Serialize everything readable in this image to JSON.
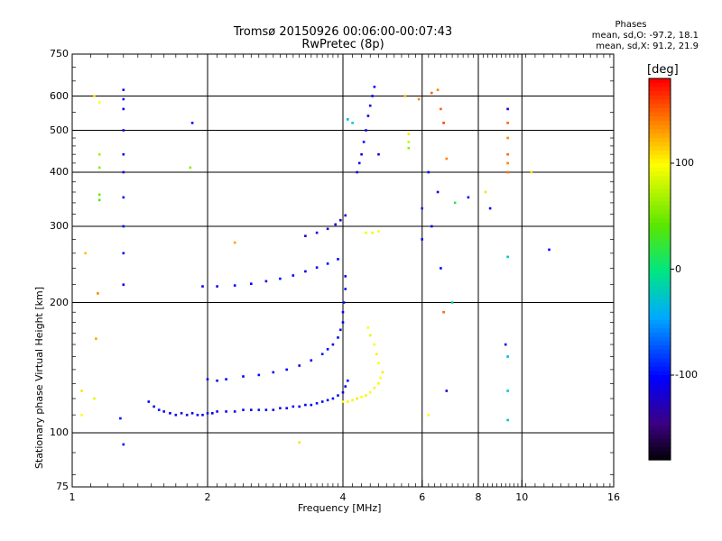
{
  "header": {
    "title": "Tromsø 20150926 00:06:00-00:07:43",
    "subtitle": "RwPretec (8p)"
  },
  "phases_box": {
    "heading": "Phases",
    "line_o": "mean, sd,O: -97.2, 18.1",
    "line_x": "mean, sd,X:  91.2, 21.9"
  },
  "colorbar": {
    "label": "[deg]",
    "ticks": [
      "100",
      "0",
      "-100"
    ],
    "tick_values": [
      100,
      0,
      -100
    ],
    "range": [
      -180,
      180
    ]
  },
  "chart_data": {
    "type": "scatter",
    "title": "Tromsø 20150926 00:06:00-00:07:43",
    "subtitle": "RwPretec (8p)",
    "xlabel": "Frequency [MHz]",
    "ylabel": "Stationary phase Virtual Height [km]",
    "x_scale": "log",
    "y_scale": "log",
    "xlim": [
      1,
      16
    ],
    "ylim": [
      75,
      750
    ],
    "x_ticks": [
      1,
      2,
      4,
      6,
      8,
      10,
      16
    ],
    "x_tick_labels": [
      "1",
      "2",
      "4",
      "6",
      "8",
      "10",
      "16"
    ],
    "y_ticks": [
      75,
      100,
      200,
      300,
      400,
      500,
      600,
      750
    ],
    "y_tick_labels": [
      "75",
      "100",
      "200",
      "300",
      "400",
      "500",
      "600",
      "750"
    ],
    "x_gridlines": [
      2,
      4,
      6,
      8,
      10
    ],
    "y_gridlines": [
      100,
      200,
      300,
      400,
      500,
      600
    ],
    "color_axis": "phase [deg]",
    "series": [
      {
        "trace": "O-mode lower band",
        "points": [
          [
            1.48,
            118,
            -105
          ],
          [
            1.52,
            115,
            -110
          ],
          [
            1.56,
            113,
            -95
          ],
          [
            1.6,
            112,
            -108
          ],
          [
            1.65,
            111,
            -102
          ],
          [
            1.7,
            110,
            -112
          ],
          [
            1.75,
            111,
            -98
          ],
          [
            1.8,
            110,
            -105
          ],
          [
            1.85,
            111,
            -110
          ],
          [
            1.9,
            110,
            -100
          ],
          [
            1.95,
            110,
            -108
          ],
          [
            2.0,
            111,
            -95
          ],
          [
            2.05,
            111,
            -105
          ],
          [
            2.1,
            112,
            -110
          ],
          [
            2.2,
            112,
            -100
          ],
          [
            2.3,
            112,
            -106
          ],
          [
            2.4,
            113,
            -102
          ],
          [
            2.5,
            113,
            -108
          ],
          [
            2.6,
            113,
            -95
          ],
          [
            2.7,
            113,
            -104
          ],
          [
            2.8,
            113,
            -110
          ],
          [
            2.9,
            114,
            -100
          ],
          [
            3.0,
            114,
            -106
          ],
          [
            3.1,
            115,
            -98
          ],
          [
            3.2,
            115,
            -104
          ],
          [
            3.3,
            116,
            -110
          ],
          [
            3.4,
            116,
            -100
          ],
          [
            3.5,
            117,
            -96
          ],
          [
            3.6,
            118,
            -104
          ],
          [
            3.7,
            119,
            -108
          ],
          [
            3.8,
            120,
            -100
          ],
          [
            3.9,
            122,
            -95
          ],
          [
            4.0,
            124,
            -104
          ],
          [
            4.05,
            128,
            -110
          ],
          [
            4.1,
            132,
            -100
          ]
        ]
      },
      {
        "trace": "O-mode upper branch",
        "points": [
          [
            2.0,
            133,
            -105
          ],
          [
            2.1,
            132,
            -110
          ],
          [
            2.2,
            133,
            -100
          ],
          [
            2.4,
            135,
            -104
          ],
          [
            2.6,
            136,
            -98
          ],
          [
            2.8,
            138,
            -106
          ],
          [
            3.0,
            140,
            -100
          ],
          [
            3.2,
            143,
            -108
          ],
          [
            3.4,
            147,
            -102
          ],
          [
            3.6,
            152,
            -96
          ],
          [
            3.7,
            156,
            -104
          ],
          [
            3.8,
            160,
            -110
          ],
          [
            3.9,
            166,
            -100
          ],
          [
            3.95,
            173,
            -95
          ],
          [
            4.0,
            180,
            -104
          ],
          [
            4.0,
            190,
            -108
          ],
          [
            4.02,
            200,
            -100
          ],
          [
            4.05,
            215,
            -96
          ],
          [
            4.05,
            230,
            -104
          ]
        ]
      },
      {
        "trace": "F2 oblique trace",
        "points": [
          [
            1.95,
            218,
            -105
          ],
          [
            2.1,
            218,
            -110
          ],
          [
            2.3,
            219,
            -100
          ],
          [
            2.5,
            221,
            -104
          ],
          [
            2.7,
            224,
            -108
          ],
          [
            2.9,
            227,
            -98
          ],
          [
            3.1,
            231,
            -104
          ],
          [
            3.3,
            236,
            -110
          ],
          [
            3.5,
            241,
            -100
          ],
          [
            3.7,
            246,
            -96
          ],
          [
            3.9,
            252,
            -104
          ]
        ]
      },
      {
        "trace": "high F2 echoes",
        "points": [
          [
            3.3,
            285,
            -120
          ],
          [
            3.5,
            290,
            -115
          ],
          [
            3.7,
            296,
            -118
          ],
          [
            3.85,
            303,
            -112
          ],
          [
            3.95,
            310,
            -120
          ],
          [
            4.05,
            318,
            -115
          ]
        ]
      },
      {
        "trace": "F2 vertical spread",
        "points": [
          [
            4.3,
            400,
            -105
          ],
          [
            4.35,
            420,
            -100
          ],
          [
            4.4,
            440,
            -108
          ],
          [
            4.45,
            470,
            -95
          ],
          [
            4.5,
            500,
            -104
          ],
          [
            4.55,
            540,
            -100
          ],
          [
            4.6,
            570,
            -110
          ],
          [
            4.65,
            600,
            -98
          ],
          [
            4.7,
            630,
            -104
          ],
          [
            4.2,
            520,
            -20
          ],
          [
            4.1,
            530,
            -40
          ],
          [
            4.8,
            440,
            -110
          ]
        ]
      },
      {
        "trace": "X-mode trace",
        "points": [
          [
            4.0,
            118,
            100
          ],
          [
            4.1,
            118,
            105
          ],
          [
            4.2,
            119,
            95
          ],
          [
            4.3,
            120,
            110
          ],
          [
            4.4,
            121,
            100
          ],
          [
            4.5,
            122,
            105
          ],
          [
            4.6,
            124,
            98
          ],
          [
            4.7,
            127,
            104
          ],
          [
            4.8,
            130,
            96
          ],
          [
            4.85,
            134,
            100
          ],
          [
            4.9,
            138,
            108
          ],
          [
            4.8,
            145,
            100
          ],
          [
            4.75,
            152,
            106
          ],
          [
            4.7,
            160,
            98
          ],
          [
            4.6,
            168,
            90
          ],
          [
            4.55,
            175,
            100
          ],
          [
            4.65,
            290,
            105
          ],
          [
            4.8,
            292,
            100
          ],
          [
            4.5,
            290,
            95
          ]
        ]
      },
      {
        "trace": "scattered echoes",
        "points": [
          [
            1.05,
            110,
            100
          ],
          [
            1.05,
            125,
            110
          ],
          [
            1.07,
            260,
            120
          ],
          [
            1.12,
            600,
            110
          ],
          [
            1.15,
            580,
            100
          ],
          [
            1.15,
            440,
            70
          ],
          [
            1.15,
            410,
            60
          ],
          [
            1.15,
            355,
            50
          ],
          [
            1.15,
            345,
            40
          ],
          [
            1.14,
            210,
            140
          ],
          [
            1.13,
            165,
            130
          ],
          [
            1.12,
            120,
            90
          ],
          [
            1.3,
            620,
            -100
          ],
          [
            1.3,
            590,
            -95
          ],
          [
            1.3,
            560,
            -110
          ],
          [
            1.3,
            500,
            -105
          ],
          [
            1.3,
            440,
            -100
          ],
          [
            1.3,
            400,
            -110
          ],
          [
            1.3,
            350,
            -95
          ],
          [
            1.3,
            300,
            -100
          ],
          [
            1.3,
            260,
            -105
          ],
          [
            1.3,
            220,
            -110
          ],
          [
            1.3,
            94,
            -100
          ],
          [
            1.28,
            108,
            -95
          ],
          [
            1.83,
            410,
            60
          ],
          [
            1.85,
            520,
            -100
          ],
          [
            2.3,
            275,
            130
          ],
          [
            5.6,
            490,
            110
          ],
          [
            5.6,
            470,
            80
          ],
          [
            5.6,
            455,
            60
          ],
          [
            5.5,
            600,
            120
          ],
          [
            5.9,
            590,
            140
          ],
          [
            6.3,
            610,
            150
          ],
          [
            6.5,
            620,
            140
          ],
          [
            6.6,
            560,
            150
          ],
          [
            6.7,
            520,
            160
          ],
          [
            6.0,
            330,
            -90
          ],
          [
            6.0,
            280,
            -100
          ],
          [
            6.2,
            400,
            -100
          ],
          [
            6.3,
            300,
            -110
          ],
          [
            6.5,
            360,
            -105
          ],
          [
            6.6,
            240,
            -100
          ],
          [
            6.7,
            190,
            150
          ],
          [
            7.0,
            200,
            -10
          ],
          [
            7.1,
            340,
            20
          ],
          [
            7.6,
            350,
            -100
          ],
          [
            8.3,
            360,
            110
          ],
          [
            8.5,
            330,
            -100
          ],
          [
            9.3,
            520,
            150
          ],
          [
            9.3,
            480,
            140
          ],
          [
            9.3,
            440,
            150
          ],
          [
            9.3,
            420,
            140
          ],
          [
            9.3,
            400,
            145
          ],
          [
            9.3,
            560,
            -110
          ],
          [
            9.3,
            255,
            -20
          ],
          [
            9.2,
            160,
            -100
          ],
          [
            9.3,
            150,
            -40
          ],
          [
            9.3,
            125,
            -20
          ],
          [
            9.3,
            107,
            -30
          ],
          [
            10.5,
            400,
            110
          ],
          [
            11.5,
            265,
            -100
          ],
          [
            6.8,
            125,
            -120
          ],
          [
            6.2,
            110,
            100
          ],
          [
            3.2,
            95,
            110
          ],
          [
            6.8,
            430,
            140
          ]
        ]
      }
    ]
  }
}
